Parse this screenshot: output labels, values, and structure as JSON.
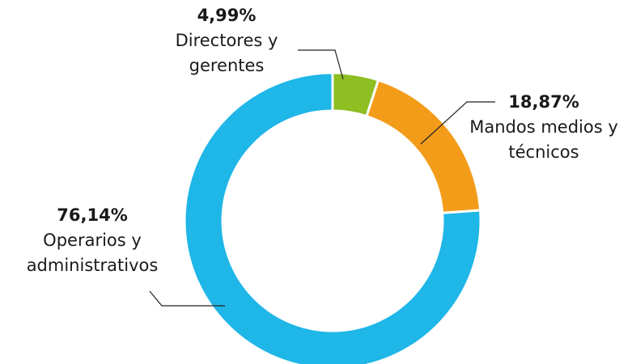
{
  "chart_data": {
    "type": "donut",
    "categories": [
      "Directores y gerentes",
      "Mandos medios y técnicos",
      "Operarios y administrativos"
    ],
    "values": [
      4.99,
      18.87,
      76.14
    ],
    "value_labels": [
      "4,99%",
      "18,87%",
      "76,14%"
    ],
    "colors": [
      "#8dbe22",
      "#f39c1a",
      "#1fb6e8"
    ]
  }
}
